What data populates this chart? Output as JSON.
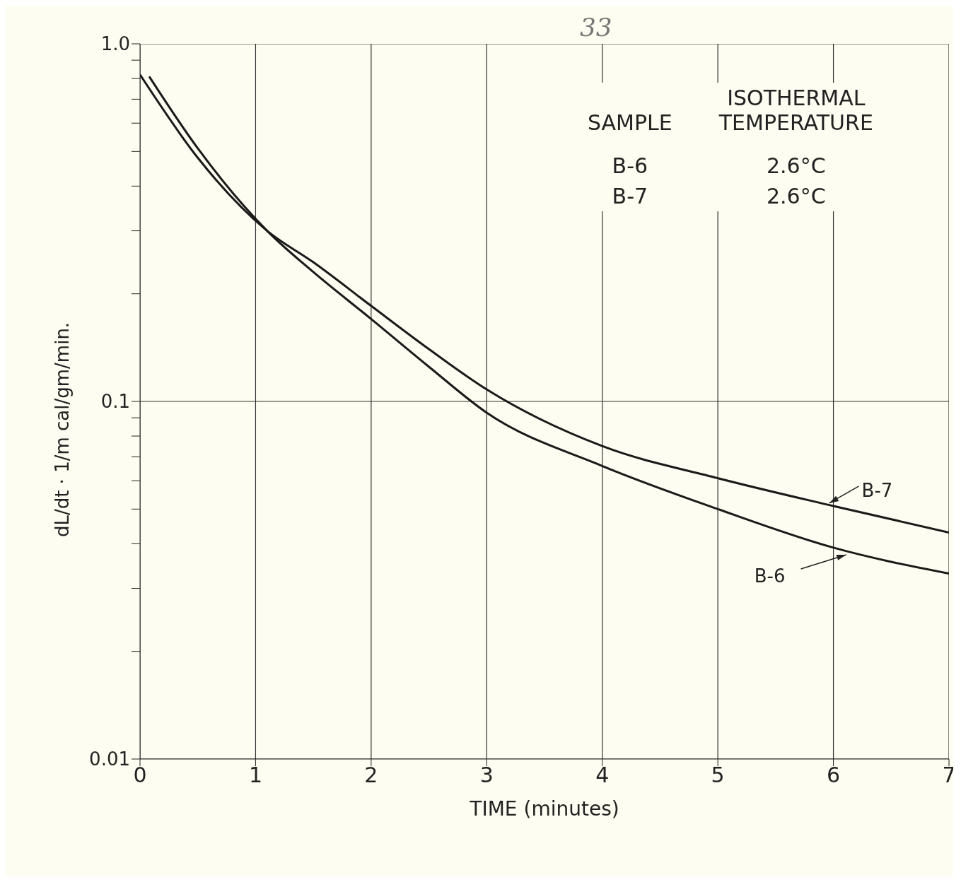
{
  "chart_data": {
    "type": "line",
    "xlabel": "TIME (minutes)",
    "ylabel": "dL/dt · 1/m cal/gm/min.",
    "annotations": [
      "33",
      "SAMPLE",
      "ISOTHERMAL TEMPERATURE",
      "B-6",
      "2.6°C",
      "B-7",
      "2.6°C"
    ],
    "series": [
      {
        "name": "B-6",
        "color": "#1a1a1a",
        "x": [
          0.08,
          0.5,
          1.1,
          1.5,
          2,
          2.5,
          3,
          4,
          5,
          6,
          7
        ],
        "values": [
          0.81,
          0.51,
          0.3,
          0.23,
          0.17,
          0.125,
          0.093,
          0.066,
          0.05,
          0.039,
          0.033
        ]
      },
      {
        "name": "B-7",
        "color": "#1a1a1a",
        "x": [
          0,
          0.5,
          1.1,
          1.5,
          2,
          2.5,
          3,
          4,
          5,
          6,
          7
        ],
        "values": [
          0.82,
          0.48,
          0.3,
          0.245,
          0.185,
          0.14,
          0.108,
          0.075,
          0.061,
          0.051,
          0.043
        ]
      }
    ],
    "xlim": [
      0,
      7
    ],
    "xticks": [
      0,
      1,
      2,
      3,
      4,
      5,
      6,
      7
    ],
    "ylim": [
      0.01,
      1
    ],
    "log": true,
    "yticks": [
      {
        "value": 0.01,
        "label": "0.01"
      },
      {
        "value": 0.02,
        "label": null
      },
      {
        "value": 0.03,
        "label": null
      },
      {
        "value": 0.04,
        "label": null
      },
      {
        "value": 0.05,
        "label": null
      },
      {
        "value": 0.06,
        "label": null
      },
      {
        "value": 0.07,
        "label": null
      },
      {
        "value": 0.08,
        "label": null
      },
      {
        "value": 0.09,
        "label": null
      },
      {
        "value": 0.1,
        "label": "0.1"
      },
      {
        "value": 0.2,
        "label": null
      },
      {
        "value": 0.3,
        "label": null
      },
      {
        "value": 0.4,
        "label": null
      },
      {
        "value": 0.5,
        "label": null
      },
      {
        "value": 0.6,
        "label": null
      },
      {
        "value": 0.7,
        "label": null
      },
      {
        "value": 0.8,
        "label": null
      },
      {
        "value": 0.9,
        "label": null
      },
      {
        "value": 1,
        "label": "1.0"
      }
    ],
    "grid": true,
    "marker": "none",
    "line_style": "solid"
  }
}
